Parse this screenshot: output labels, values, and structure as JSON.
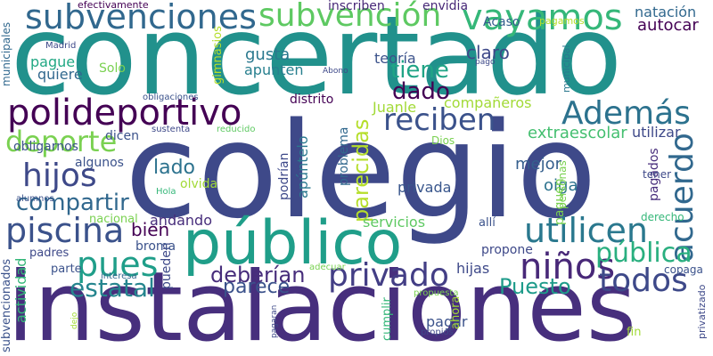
{
  "words": [
    {
      "text": "colegio",
      "color": "#3e4989"
    },
    {
      "text": "concertado",
      "color": "#21918c"
    },
    {
      "text": "instalaciones",
      "color": "#472f7d"
    },
    {
      "text": "público",
      "color": "#1f9e89"
    },
    {
      "text": "polideportivo",
      "color": "#440154"
    },
    {
      "text": "subvenciones",
      "color": "#31688e"
    },
    {
      "text": "subvención",
      "color": "#5ec962"
    },
    {
      "text": "vayamos",
      "color": "#35b779"
    },
    {
      "text": "Además",
      "color": "#2c728e"
    },
    {
      "text": "reciben",
      "color": "#3b528b"
    },
    {
      "text": "deporte",
      "color": "#7ad151"
    },
    {
      "text": "hijos",
      "color": "#3e4989"
    },
    {
      "text": "acuerdo",
      "color": "#31688e"
    },
    {
      "text": "piscina",
      "color": "#3b528b"
    },
    {
      "text": "utilicen",
      "color": "#2a788e"
    },
    {
      "text": "privado",
      "color": "#433e85"
    },
    {
      "text": "niños",
      "color": "#482878"
    },
    {
      "text": "pues",
      "color": "#1f9e89"
    },
    {
      "text": "todos",
      "color": "#3e4989"
    },
    {
      "text": "pública",
      "color": "#29af7f"
    },
    {
      "text": "deberían",
      "color": "#472d7b"
    },
    {
      "text": "estatal",
      "color": "#25858e"
    },
    {
      "text": "Puesto",
      "color": "#1e9b8a"
    },
    {
      "text": "parece",
      "color": "#3b528b"
    },
    {
      "text": "compartir",
      "color": "#31688e"
    },
    {
      "text": "dado",
      "color": "#440154"
    },
    {
      "text": "tiene",
      "color": "#20a486"
    },
    {
      "text": "parecidas",
      "color": "#b5de2b"
    },
    {
      "text": "lado",
      "color": "#2c728e"
    },
    {
      "text": "bien",
      "color": "#440154"
    },
    {
      "text": "andando",
      "color": "#472d7b"
    },
    {
      "text": "claro",
      "color": "#3e4989"
    },
    {
      "text": "gusta",
      "color": "#2a788e"
    },
    {
      "text": "apunten",
      "color": "#277f8e"
    },
    {
      "text": "autocar",
      "color": "#440154"
    },
    {
      "text": "natación",
      "color": "#31688e"
    },
    {
      "text": "teoría",
      "color": "#3b528b"
    },
    {
      "text": "pague",
      "color": "#22a884"
    },
    {
      "text": "quiere",
      "color": "#31688e"
    },
    {
      "text": "compañeros",
      "color": "#a2da37"
    },
    {
      "text": "extraescolar",
      "color": "#44bf70"
    },
    {
      "text": "utilizar",
      "color": "#3e4989"
    },
    {
      "text": "mejor",
      "color": "#355f8d"
    },
    {
      "text": "oiga",
      "color": "#2c728e"
    },
    {
      "text": "privada",
      "color": "#39568c"
    },
    {
      "text": "problema",
      "color": "#31688e"
    },
    {
      "text": "apúntelo",
      "color": "#2a788e"
    },
    {
      "text": "podrían",
      "color": "#3e4989"
    },
    {
      "text": "paguen",
      "color": "#7ad151"
    },
    {
      "text": "pagados",
      "color": "#472d7b"
    },
    {
      "text": "servicios",
      "color": "#5ec962"
    },
    {
      "text": "hijas",
      "color": "#3e4989"
    },
    {
      "text": "propone",
      "color": "#3e4989"
    },
    {
      "text": "pagar",
      "color": "#3b528b"
    },
    {
      "text": "actividad",
      "color": "#35b779"
    },
    {
      "text": "pueden",
      "color": "#3e4989"
    },
    {
      "text": "algunos",
      "color": "#3b528b"
    },
    {
      "text": "obligarnos",
      "color": "#3b528b"
    },
    {
      "text": "dicen",
      "color": "#3b528b"
    },
    {
      "text": "Juanle",
      "color": "#a2da37"
    },
    {
      "text": "distrito",
      "color": "#440154"
    },
    {
      "text": "efectivamente",
      "color": "#440154"
    },
    {
      "text": "inscriben",
      "color": "#482878"
    },
    {
      "text": "envidia",
      "color": "#482878"
    },
    {
      "text": "Acaso",
      "color": "#355f8d"
    },
    {
      "text": "pagamos",
      "color": "#b5de2b"
    },
    {
      "text": "municipales",
      "color": "#31688e"
    },
    {
      "text": "Madrid",
      "color": "#3e4989"
    },
    {
      "text": "Solo",
      "color": "#7ad151"
    },
    {
      "text": "gimnasios",
      "color": "#b5de2b"
    },
    {
      "text": "Abono",
      "color": "#3e4989"
    },
    {
      "text": "pago",
      "color": "#3e4989"
    },
    {
      "text": "municipal",
      "color": "#2a788e"
    },
    {
      "text": "obligaciones",
      "color": "#3b528b"
    },
    {
      "text": "sustenta",
      "color": "#3e4989"
    },
    {
      "text": "reducido",
      "color": "#5ec962"
    },
    {
      "text": "tener",
      "color": "#3e4989"
    },
    {
      "text": "Dios",
      "color": "#7ad151"
    },
    {
      "text": "personas",
      "color": "#7ad151"
    },
    {
      "text": "alumnos",
      "color": "#3b528b"
    },
    {
      "text": "Hola",
      "color": "#35b779"
    },
    {
      "text": "olvida",
      "color": "#a2da37"
    },
    {
      "text": "nacional",
      "color": "#7ad151"
    },
    {
      "text": "derecho",
      "color": "#35b779"
    },
    {
      "text": "allí",
      "color": "#3b528b"
    },
    {
      "text": "broma",
      "color": "#3b528b"
    },
    {
      "text": "padres",
      "color": "#3e4989"
    },
    {
      "text": "parte",
      "color": "#3b528b"
    },
    {
      "text": "subvencionados",
      "color": "#3b528b"
    },
    {
      "text": "interesa",
      "color": "#31688e"
    },
    {
      "text": "adecuar",
      "color": "#7ad151"
    },
    {
      "text": "propuesta",
      "color": "#7ad151"
    },
    {
      "text": "copaga",
      "color": "#3b528b"
    },
    {
      "text": "privatizado",
      "color": "#3e4989"
    },
    {
      "text": "dejo",
      "color": "#a2da37"
    },
    {
      "text": "pagaran",
      "color": "#3e4989"
    },
    {
      "text": "cumplir",
      "color": "#35b779"
    },
    {
      "text": "propios",
      "color": "#3e4989"
    },
    {
      "text": "ahora",
      "color": "#a2da37"
    },
    {
      "text": "fin",
      "color": "#a2da37"
    }
  ]
}
